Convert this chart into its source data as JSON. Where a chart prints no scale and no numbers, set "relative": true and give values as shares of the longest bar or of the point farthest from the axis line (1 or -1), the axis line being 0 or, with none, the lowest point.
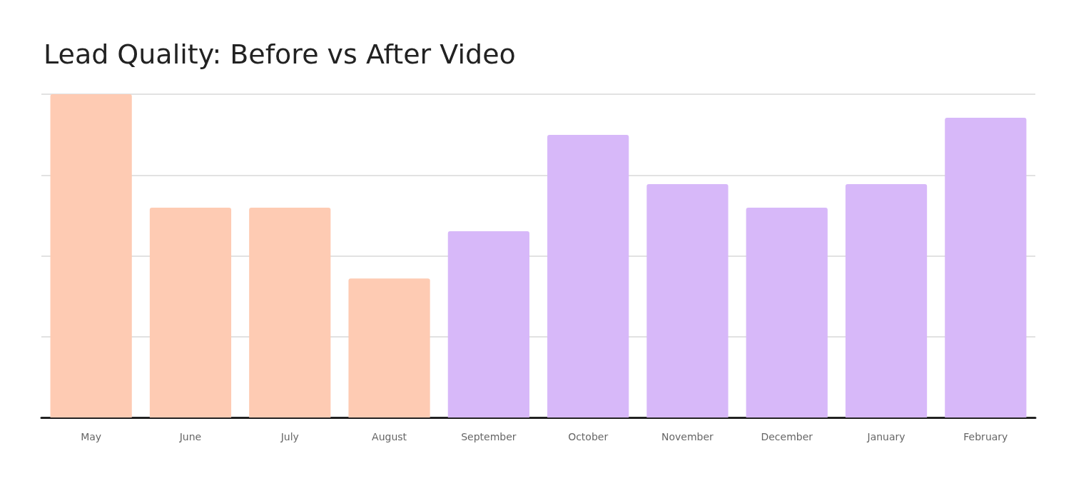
{
  "chart_data": {
    "type": "bar",
    "title": "Lead Quality: Before vs After Video",
    "relative": true,
    "grid": "y",
    "categories": [
      "May",
      "June",
      "July",
      "August",
      "September",
      "October",
      "November",
      "December",
      "January",
      "February"
    ],
    "values": [
      1,
      0.649,
      0.649,
      0.43,
      0.576,
      0.874,
      0.722,
      0.649,
      0.722,
      0.927
    ],
    "colors": [
      "#fecbb3",
      "#fecbb3",
      "#fecbb3",
      "#fecbb3",
      "#d7b8f9",
      "#d7b8f9",
      "#d7b8f9",
      "#d7b8f9",
      "#d7b8f9",
      "#d7b8f9"
    ]
  }
}
